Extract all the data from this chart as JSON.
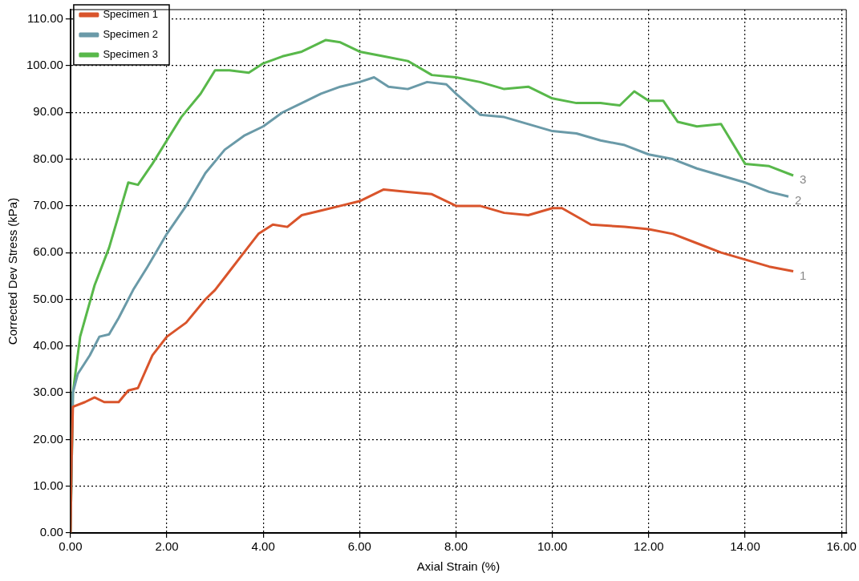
{
  "chart_data": {
    "type": "line",
    "xlabel": "Axial Strain (%)",
    "ylabel": "Corrected Dev Stress (kPa)",
    "xlim": [
      0,
      16.1
    ],
    "ylim": [
      0,
      112
    ],
    "xticks": [
      {
        "value": 0,
        "label": "0.00"
      },
      {
        "value": 2,
        "label": "2.00"
      },
      {
        "value": 4,
        "label": "4.00"
      },
      {
        "value": 6,
        "label": "6.00"
      },
      {
        "value": 8,
        "label": "8.00"
      },
      {
        "value": 10,
        "label": "10.00"
      },
      {
        "value": 12,
        "label": "12.00"
      },
      {
        "value": 14,
        "label": "14.00"
      },
      {
        "value": 16,
        "label": "16.00"
      }
    ],
    "yticks": [
      {
        "value": 0,
        "label": "0.00"
      },
      {
        "value": 10,
        "label": "10.00"
      },
      {
        "value": 20,
        "label": "20.00"
      },
      {
        "value": 30,
        "label": "30.00"
      },
      {
        "value": 40,
        "label": "40.00"
      },
      {
        "value": 50,
        "label": "50.00"
      },
      {
        "value": 60,
        "label": "60.00"
      },
      {
        "value": 70,
        "label": "70.00"
      },
      {
        "value": 80,
        "label": "80.00"
      },
      {
        "value": 90,
        "label": "90.00"
      },
      {
        "value": 100,
        "label": "100.00"
      },
      {
        "value": 110,
        "label": "110.00"
      }
    ],
    "grid": true,
    "legend": "top left",
    "line_style": "solid",
    "marker": "none",
    "annotations": [
      "1",
      "2",
      "3"
    ],
    "series": [
      {
        "name": "Specimen 1",
        "color": "#d9542b",
        "x": [
          0,
          0.02,
          0.05,
          0.3,
          0.5,
          0.7,
          1.0,
          1.2,
          1.4,
          1.7,
          2.0,
          2.4,
          2.8,
          3.0,
          3.3,
          3.6,
          3.9,
          4.2,
          4.5,
          4.8,
          5.2,
          5.6,
          6.0,
          6.5,
          7.0,
          7.5,
          8.0,
          8.5,
          9.0,
          9.5,
          10.0,
          10.2,
          10.8,
          11.5,
          12.0,
          12.5,
          13.0,
          13.5,
          14.0,
          14.5,
          15.0
        ],
        "values": [
          0,
          15,
          27,
          28,
          29,
          28,
          28,
          30.5,
          31,
          38,
          42,
          45,
          50,
          52,
          56,
          60,
          64,
          66,
          65.5,
          68,
          69,
          70,
          71,
          73.5,
          73,
          72.5,
          70,
          70,
          68.5,
          68,
          69.5,
          69.5,
          66,
          65.5,
          65,
          64,
          62,
          60,
          58.5,
          57,
          56
        ]
      },
      {
        "name": "Specimen 2",
        "color": "#6a9aa8",
        "x": [
          0,
          0.05,
          0.15,
          0.4,
          0.6,
          0.8,
          1.0,
          1.3,
          1.6,
          2.0,
          2.4,
          2.8,
          3.2,
          3.6,
          4.0,
          4.4,
          4.8,
          5.2,
          5.6,
          6.0,
          6.3,
          6.6,
          7.0,
          7.4,
          7.8,
          8.0,
          8.5,
          9.0,
          9.5,
          10.0,
          10.5,
          11.0,
          11.5,
          12.0,
          12.5,
          13.0,
          13.5,
          14.0,
          14.5,
          14.9
        ],
        "values": [
          0,
          30,
          34,
          38,
          42,
          42.5,
          46,
          52,
          57,
          64,
          70,
          77,
          82,
          85,
          87,
          90,
          92,
          94,
          95.5,
          96.5,
          97.5,
          95.5,
          95,
          96.5,
          96,
          94,
          89.5,
          89,
          87.5,
          86,
          85.5,
          84,
          83,
          81,
          80,
          78,
          76.5,
          75,
          73,
          72
        ]
      },
      {
        "name": "Specimen 3",
        "color": "#58b84a",
        "x": [
          0,
          0.05,
          0.2,
          0.5,
          0.8,
          1.0,
          1.2,
          1.4,
          1.7,
          2.0,
          2.3,
          2.7,
          3.0,
          3.3,
          3.7,
          4.0,
          4.4,
          4.8,
          5.3,
          5.6,
          6.0,
          6.5,
          7.0,
          7.5,
          8.0,
          8.5,
          9.0,
          9.5,
          10.0,
          10.5,
          11.0,
          11.4,
          11.7,
          12.0,
          12.3,
          12.6,
          13.0,
          13.5,
          14.0,
          14.5,
          15.0
        ],
        "values": [
          0,
          30,
          42,
          53,
          61,
          68,
          75,
          74.5,
          79,
          84,
          89,
          94,
          99,
          99,
          98.5,
          100.5,
          102,
          103,
          105.5,
          105,
          103,
          102,
          101,
          98,
          97.5,
          96.5,
          95,
          95.5,
          93,
          92,
          92,
          91.5,
          94.5,
          92.5,
          92.5,
          88,
          87,
          87.5,
          79,
          78.5,
          76.5
        ]
      }
    ]
  }
}
